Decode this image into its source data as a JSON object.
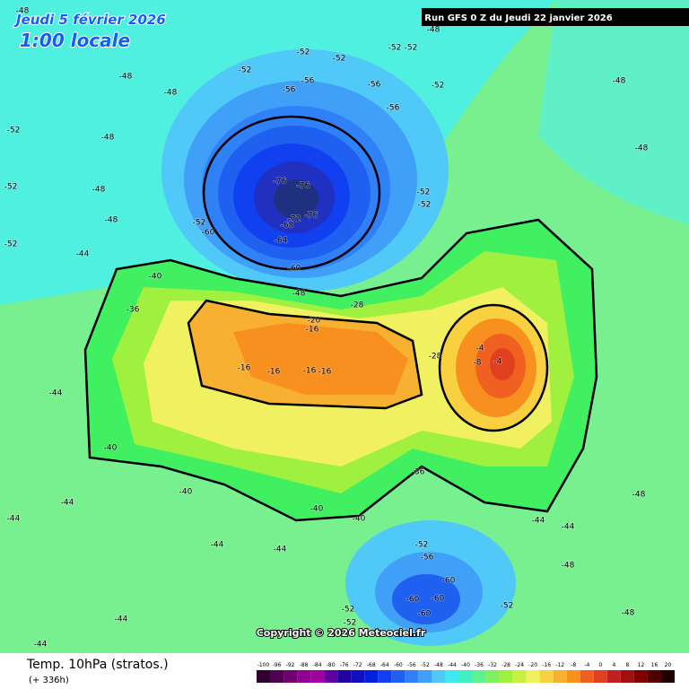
{
  "header": {
    "date": "Jeudi 5 février 2026",
    "time": "1:00 locale",
    "run": "Run GFS 0 Z du Jeudi 22 janvier 2026"
  },
  "footer": {
    "variable": "Temp. 10hPa (stratos.)",
    "lead": "(+ 336h)",
    "copyright": "Copyright © 2026 Meteociel.fr"
  },
  "scale": {
    "ticks": [
      -100,
      -96,
      -92,
      -88,
      -84,
      -80,
      -76,
      -72,
      -68,
      -64,
      -60,
      -56,
      -52,
      -48,
      -44,
      -40,
      -36,
      -32,
      -28,
      -24,
      -20,
      -16,
      -12,
      -8,
      -4,
      0,
      4,
      8,
      12,
      16,
      20
    ],
    "colors": [
      "#300030",
      "#500050",
      "#700070",
      "#900090",
      "#a000a0",
      "#6000a0",
      "#2000a0",
      "#1010c0",
      "#0020e0",
      "#1040f0",
      "#2060f0",
      "#3080f8",
      "#40a0f8",
      "#50c8f8",
      "#40e8f0",
      "#40f0c0",
      "#60f090",
      "#80f060",
      "#a0f040",
      "#c8f040",
      "#f0f060",
      "#f8d040",
      "#f8b030",
      "#f89020",
      "#f06020",
      "#e04020",
      "#c02020",
      "#a01010",
      "#800000",
      "#500000",
      "#200000"
    ]
  },
  "contour_labels": [
    -48,
    -48,
    -48,
    -52,
    -52,
    -52,
    -52,
    -52,
    -56,
    -56,
    -56,
    -56,
    -76,
    -76,
    -76,
    -72,
    -68,
    -64,
    -60,
    -60,
    -52,
    -52,
    -52,
    -52,
    -52,
    -52,
    -52,
    -48,
    -48,
    -48,
    -44,
    -40,
    -36,
    -48,
    -28,
    -20,
    -16,
    -16,
    -16,
    -16,
    -16,
    -4,
    -4,
    -8,
    -28,
    -36,
    -40,
    -40,
    -40,
    -40,
    -44,
    -44,
    -44,
    -44,
    -44,
    -52,
    -56,
    -60,
    -60,
    -60,
    -60,
    -52,
    -52,
    -52,
    -48,
    -48,
    -48,
    -48,
    -48,
    -44,
    -48,
    -48,
    -44,
    -44,
    -44
  ]
}
